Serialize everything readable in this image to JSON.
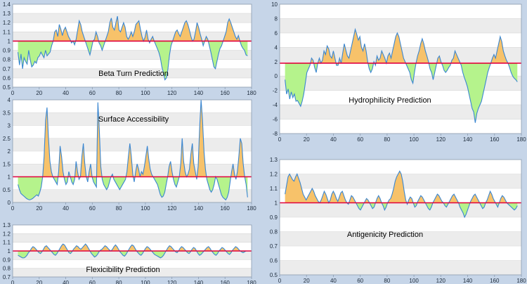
{
  "colors": {
    "above": "#f7c26a",
    "below": "#b5f38c",
    "line": "#3a86d1",
    "threshold": "#e0003c",
    "band_light": "#ffffff",
    "band_dark": "#ececec",
    "background": "#c6d5e8"
  },
  "chart_data": [
    {
      "id": "beta",
      "type": "area",
      "title": "Beta Turn Prediction",
      "xlim": [
        0,
        180
      ],
      "ylim": [
        0.5,
        1.4
      ],
      "xticks": [
        0,
        20,
        40,
        60,
        80,
        100,
        120,
        140,
        160,
        180
      ],
      "yticks": [
        0.5,
        0.6,
        0.7,
        0.8,
        0.9,
        1.0,
        1.1,
        1.2,
        1.3,
        1.4
      ],
      "threshold": 1.0,
      "x_range": [
        4,
        177
      ],
      "series": [
        {
          "values": [
            0.88,
            0.74,
            0.86,
            0.7,
            0.82,
            0.78,
            0.75,
            0.9,
            0.8,
            0.72,
            0.74,
            0.78,
            0.76,
            0.82,
            0.84,
            0.88,
            0.85,
            0.82,
            0.9,
            0.84,
            0.86,
            0.88,
            0.95,
            1.0,
            1.1,
            1.12,
            1.05,
            1.18,
            1.13,
            1.06,
            1.12,
            1.15,
            1.1,
            1.05,
            1.02,
            0.98,
            1.0,
            0.96,
            1.02,
            1.12,
            1.22,
            1.18,
            1.1,
            1.05,
            1.0,
            0.95,
            0.9,
            0.85,
            0.92,
            1.0,
            1.02,
            1.1,
            1.05,
            0.98,
            0.95,
            0.9,
            0.95,
            1.0,
            1.05,
            1.1,
            1.2,
            1.25,
            1.15,
            1.12,
            1.2,
            1.27,
            1.12,
            1.1,
            1.15,
            1.2,
            1.15,
            1.05,
            1.02,
            1.05,
            1.1,
            1.05,
            1.1,
            1.18,
            1.2,
            1.22,
            1.13,
            1.05,
            1.0,
            1.04,
            1.12,
            1.02,
            0.98,
            1.02,
            1.05,
            1.0,
            0.96,
            0.92,
            0.88,
            0.82,
            0.72,
            0.66,
            0.58,
            0.6,
            0.7,
            0.85,
            0.95,
            1.0,
            1.05,
            1.1,
            1.12,
            1.08,
            1.05,
            1.1,
            1.15,
            1.2,
            1.22,
            1.18,
            1.12,
            1.05,
            1.0,
            1.02,
            1.1,
            1.2,
            1.15,
            1.08,
            1.02,
            0.95,
            1.0,
            1.05,
            1.02,
            0.95,
            0.88,
            0.8,
            0.72,
            0.7,
            0.78,
            0.86,
            0.92,
            0.95,
            1.0,
            1.05,
            1.1,
            1.2,
            1.24,
            1.2,
            1.15,
            1.1,
            1.05,
            1.02,
            1.06,
            1.0,
            0.95,
            0.92,
            0.9,
            0.85,
            0.84
          ]
        }
      ]
    },
    {
      "id": "surface",
      "type": "area",
      "title": "Surface Accessibility",
      "xlim": [
        0,
        180
      ],
      "ylim": [
        0,
        4
      ],
      "xticks": [
        0,
        20,
        40,
        60,
        80,
        100,
        120,
        140,
        160,
        180
      ],
      "yticks": [
        0,
        0.5,
        1,
        1.5,
        2,
        2.5,
        3,
        3.5,
        4
      ],
      "threshold": 1.0,
      "x_range": [
        4,
        177
      ],
      "series": [
        {
          "values": [
            0.7,
            0.5,
            0.35,
            0.3,
            0.25,
            0.2,
            0.15,
            0.12,
            0.1,
            0.12,
            0.15,
            0.2,
            0.25,
            0.3,
            0.25,
            0.4,
            0.6,
            1.0,
            1.8,
            3.2,
            3.7,
            2.5,
            1.6,
            1.2,
            1.0,
            0.9,
            0.8,
            0.7,
            1.2,
            2.2,
            1.8,
            1.2,
            0.9,
            0.7,
            0.8,
            1.2,
            1.0,
            0.8,
            0.7,
            0.9,
            1.6,
            1.2,
            0.9,
            1.0,
            1.8,
            2.3,
            1.5,
            1.0,
            0.8,
            1.2,
            1.5,
            1.0,
            0.8,
            0.7,
            0.6,
            3.9,
            2.8,
            1.4,
            0.9,
            0.7,
            0.6,
            0.5,
            0.6,
            0.8,
            1.0,
            1.1,
            0.9,
            0.8,
            0.7,
            0.6,
            0.5,
            0.6,
            0.7,
            0.8,
            0.9,
            1.2,
            1.8,
            2.3,
            1.8,
            1.1,
            0.8,
            1.2,
            1.5,
            1.3,
            1.0,
            1.2,
            1.1,
            1.4,
            1.8,
            2.2,
            1.7,
            1.3,
            1.1,
            1.0,
            0.9,
            0.8,
            0.7,
            0.5,
            0.3,
            0.2,
            0.25,
            0.4,
            0.7,
            1.0,
            1.4,
            1.6,
            1.2,
            0.9,
            0.7,
            0.6,
            0.8,
            1.0,
            1.5,
            2.5,
            1.6,
            1.2,
            1.0,
            1.1,
            1.3,
            1.9,
            2.3,
            1.5,
            1.2,
            0.9,
            1.4,
            2.9,
            4.0,
            3.2,
            2.0,
            1.3,
            0.9,
            0.7,
            0.5,
            0.4,
            0.5,
            0.7,
            1.0,
            0.9,
            0.7,
            0.5,
            0.3,
            0.2,
            0.15,
            0.1,
            0.2,
            0.4,
            0.8,
            1.2,
            1.5,
            1.1,
            0.9,
            1.2,
            1.8,
            2.5,
            2.3,
            1.5,
            1.0,
            0.7,
            0.2
          ]
        }
      ]
    },
    {
      "id": "flex",
      "type": "area",
      "title": "Flexicibility Prediction",
      "xlim": [
        0,
        180
      ],
      "ylim": [
        0.7,
        1.3
      ],
      "xticks": [
        0,
        20,
        40,
        60,
        80,
        100,
        120,
        140,
        160,
        180
      ],
      "yticks": [
        0.7,
        0.8,
        0.9,
        1.0,
        1.1,
        1.2,
        1.3
      ],
      "threshold": 1.0,
      "x_range": [
        4,
        177
      ],
      "series": [
        {
          "values": [
            0.95,
            0.94,
            0.93,
            0.92,
            0.92,
            0.93,
            0.95,
            0.98,
            1.0,
            1.03,
            1.05,
            1.04,
            1.02,
            1.0,
            0.98,
            0.97,
            0.99,
            1.02,
            1.05,
            1.06,
            1.04,
            1.02,
            1.0,
            0.98,
            0.96,
            0.95,
            0.97,
            1.0,
            1.03,
            1.06,
            1.08,
            1.07,
            1.04,
            1.01,
            0.98,
            0.97,
            0.99,
            1.02,
            1.04,
            1.06,
            1.05,
            1.03,
            1.02,
            1.04,
            1.06,
            1.08,
            1.06,
            1.03,
            1.0,
            0.97,
            0.95,
            0.93,
            0.94,
            0.96,
            0.99,
            1.01,
            1.02,
            1.04,
            1.06,
            1.05,
            1.03,
            1.01,
            1.0,
            1.02,
            1.05,
            1.07,
            1.05,
            1.02,
            0.99,
            0.97,
            0.95,
            0.94,
            0.96,
            0.99,
            1.02,
            1.05,
            1.07,
            1.06,
            1.03,
            1.0,
            0.98,
            0.96,
            0.95,
            0.97,
            1.0,
            1.03,
            1.05,
            1.04,
            1.02,
            1.0,
            0.98,
            0.96,
            0.95,
            0.94,
            0.93,
            0.92,
            0.93,
            0.95,
            0.98,
            1.01,
            1.04,
            1.06,
            1.05,
            1.03,
            1.01,
            0.99,
            0.98,
            1.0,
            1.03,
            1.05,
            1.04,
            1.02,
            1.0,
            0.98,
            0.97,
            0.99,
            1.02,
            1.04,
            1.03,
            1.0,
            0.97,
            0.95,
            0.96,
            0.98,
            1.0,
            1.02,
            1.04,
            1.05,
            1.03,
            1.0,
            0.98,
            0.96,
            0.95,
            0.97,
            1.0,
            1.02,
            1.04,
            1.03,
            1.01,
            0.99,
            0.97,
            0.96,
            0.98,
            1.01,
            1.03,
            1.05,
            1.04,
            1.02,
            1.0,
            0.99,
            0.98,
            0.99,
            1.0,
            1.0
          ]
        }
      ]
    },
    {
      "id": "hydro",
      "type": "area",
      "title": "Hydrophilicity Prediction",
      "xlim": [
        0,
        180
      ],
      "ylim": [
        -8,
        10
      ],
      "xticks": [
        0,
        20,
        40,
        60,
        80,
        100,
        120,
        140,
        160,
        180
      ],
      "yticks": [
        -8,
        -6,
        -4,
        -2,
        0,
        2,
        4,
        6,
        8,
        10
      ],
      "threshold": 1.8,
      "x_range": [
        4,
        177
      ],
      "series": [
        {
          "values": [
            -0.5,
            -2.5,
            -1.8,
            -3.2,
            -2.2,
            -3.0,
            -2.5,
            -3.5,
            -3.4,
            -3.8,
            -4.2,
            -3.5,
            -2.5,
            -1.0,
            0.5,
            1.0,
            1.5,
            2.5,
            2.2,
            1.2,
            0.5,
            1.8,
            2.5,
            1.8,
            2.2,
            3.5,
            3.0,
            4.2,
            3.8,
            2.8,
            2.5,
            3.5,
            2.5,
            1.5,
            1.5,
            2.5,
            1.8,
            3.2,
            4.5,
            3.6,
            2.8,
            2.5,
            3.5,
            4.5,
            5.5,
            6.5,
            5.8,
            5.0,
            5.5,
            4.0,
            3.5,
            4.5,
            3.5,
            2.0,
            1.0,
            0.5,
            1.0,
            2.0,
            1.5,
            2.8,
            2.2,
            2.5,
            3.5,
            3.0,
            2.5,
            1.8,
            2.8,
            3.2,
            2.5,
            3.5,
            4.5,
            5.5,
            6.0,
            5.5,
            4.5,
            3.5,
            2.5,
            2.0,
            1.5,
            1.0,
            0.5,
            -0.5,
            -1.0,
            0.5,
            1.8,
            2.8,
            3.5,
            4.5,
            5.2,
            4.5,
            3.5,
            2.8,
            2.0,
            1.0,
            0.5,
            -0.5,
            0.5,
            1.5,
            2.5,
            2.8,
            2.0,
            1.5,
            0.8,
            0.5,
            0.8,
            1.2,
            1.5,
            2.2,
            2.5,
            3.5,
            3.0,
            2.5,
            2.0,
            1.5,
            0.5,
            -0.2,
            -0.8,
            -1.5,
            -2.5,
            -3.5,
            -4.5,
            -5.0,
            -6.5,
            -5.2,
            -4.5,
            -4.0,
            -3.5,
            -2.5,
            -1.5,
            -0.5,
            0.5,
            1.2,
            1.8,
            2.5,
            3.0,
            2.5,
            3.5,
            4.5,
            5.5,
            4.8,
            3.5,
            2.8,
            2.2,
            1.8,
            1.2,
            0.5,
            0.0,
            -0.3,
            -0.5,
            -0.8
          ]
        }
      ]
    },
    {
      "id": "anti",
      "type": "area",
      "title": "Antigenicity Prediction",
      "xlim": [
        0,
        180
      ],
      "ylim": [
        0.5,
        1.3
      ],
      "xticks": [
        0,
        20,
        40,
        60,
        80,
        100,
        120,
        140,
        160,
        180
      ],
      "yticks": [
        0.5,
        0.6,
        0.7,
        0.8,
        0.9,
        1.0,
        1.1,
        1.2,
        1.3
      ],
      "threshold": 1.0,
      "x_range": [
        4,
        177
      ],
      "series": [
        {
          "values": [
            1.06,
            1.12,
            1.18,
            1.2,
            1.18,
            1.16,
            1.15,
            1.18,
            1.2,
            1.17,
            1.14,
            1.1,
            1.06,
            1.04,
            1.02,
            1.04,
            1.06,
            1.08,
            1.1,
            1.08,
            1.05,
            1.03,
            1.01,
            1.0,
            1.02,
            1.05,
            1.08,
            1.06,
            1.03,
            1.0,
            1.02,
            1.06,
            1.08,
            1.06,
            1.03,
            1.01,
            1.04,
            1.07,
            1.08,
            1.05,
            1.02,
            1.0,
            0.99,
            1.02,
            1.05,
            1.04,
            1.02,
            1.0,
            0.98,
            0.96,
            0.95,
            0.97,
            0.99,
            1.01,
            1.03,
            1.02,
            1.0,
            0.98,
            0.96,
            0.97,
            1.0,
            1.03,
            1.05,
            1.03,
            1.0,
            0.98,
            0.95,
            0.97,
            1.0,
            1.02,
            1.03,
            1.06,
            1.1,
            1.15,
            1.18,
            1.2,
            1.22,
            1.2,
            1.15,
            1.08,
            1.02,
            0.99,
            1.02,
            1.04,
            1.03,
            1.0,
            0.97,
            0.98,
            1.01,
            1.03,
            1.05,
            1.04,
            1.02,
            1.0,
            0.98,
            0.96,
            0.95,
            0.97,
            1.0,
            1.02,
            1.04,
            1.06,
            1.05,
            1.03,
            1.01,
            1.0,
            0.98,
            0.97,
            0.99,
            1.01,
            1.03,
            1.05,
            1.06,
            1.04,
            1.02,
            1.0,
            0.97,
            0.95,
            0.93,
            0.9,
            0.92,
            0.95,
            0.98,
            1.01,
            1.03,
            1.05,
            1.06,
            1.04,
            1.02,
            1.0,
            0.98,
            0.96,
            0.97,
            1.0,
            1.02,
            1.05,
            1.08,
            1.06,
            1.03,
            1.01,
            0.99,
            0.97,
            1.0,
            1.03,
            1.05,
            1.04,
            1.02,
            1.0,
            0.99,
            0.98,
            0.97,
            0.96,
            0.95,
            0.96,
            0.98
          ]
        }
      ]
    }
  ]
}
